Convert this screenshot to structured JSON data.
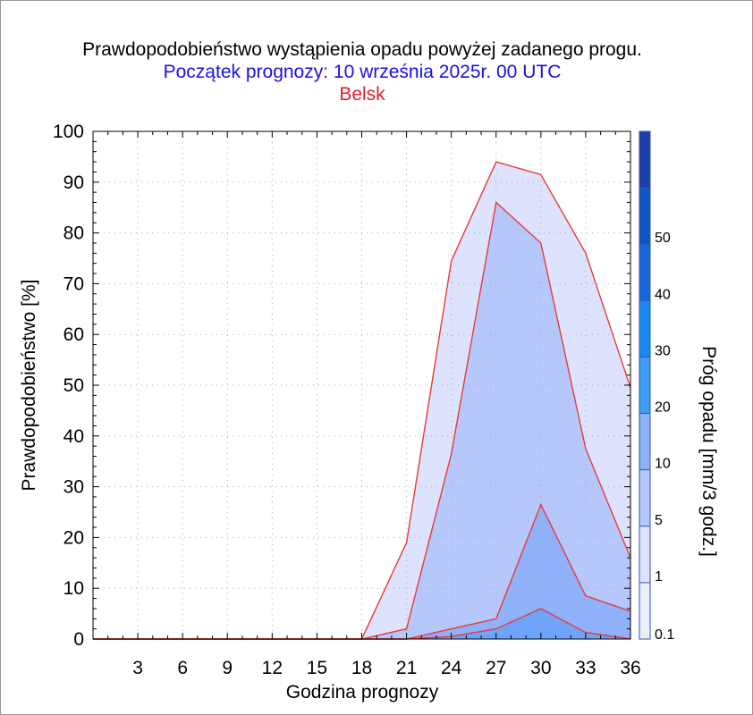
{
  "chart_data": {
    "type": "area",
    "title": "Prawdopodobieństwo wystąpienia opadu powyżej zadanego progu.",
    "subtitle": "Początek prognozy: 10 września 2025r. 00 UTC",
    "location": "Belsk",
    "xlabel": "Godzina prognozy",
    "ylabel": "Prawdopodobieństwo [%]",
    "colorbar_label": "Próg opadu [mm/3 godz.]",
    "xlim": [
      0,
      36
    ],
    "ylim": [
      0,
      100
    ],
    "x_ticks": [
      3,
      6,
      9,
      12,
      15,
      18,
      21,
      24,
      27,
      30,
      33,
      36
    ],
    "y_ticks": [
      0,
      10,
      20,
      30,
      40,
      50,
      60,
      70,
      80,
      90,
      100
    ],
    "x": [
      0,
      3,
      6,
      9,
      12,
      15,
      18,
      21,
      24,
      27,
      30,
      33,
      36
    ],
    "series": [
      {
        "threshold": "0.1",
        "color": "#dde3fc",
        "values": [
          0,
          0,
          0,
          0,
          0,
          0,
          0,
          19,
          74.5,
          94,
          91.5,
          76,
          49.5
        ]
      },
      {
        "threshold": "1",
        "color": "#b6c8fb",
        "values": [
          0,
          0,
          0,
          0,
          0,
          0,
          0,
          2,
          36.5,
          86,
          78,
          37.5,
          16
        ]
      },
      {
        "threshold": "5",
        "color": "#8fb1fa",
        "values": [
          0,
          0,
          0,
          0,
          0,
          0,
          0,
          0,
          2,
          4,
          26.5,
          8.5,
          5.5
        ]
      },
      {
        "threshold": "10",
        "color": "#6da3f8",
        "values": [
          0,
          0,
          0,
          0,
          0,
          0,
          0,
          0,
          0.5,
          2,
          6,
          1.3,
          0
        ]
      }
    ],
    "colorbar": {
      "levels": [
        "0.1",
        "1",
        "5",
        "10",
        "20",
        "30",
        "40",
        "50"
      ],
      "colors": [
        "#ecf0fd",
        "#dde3fc",
        "#b6c8fb",
        "#8fb1fa",
        "#3d9cf0",
        "#1a8af3",
        "#1668da",
        "#0d56c2",
        "#1a3fa6"
      ]
    }
  }
}
